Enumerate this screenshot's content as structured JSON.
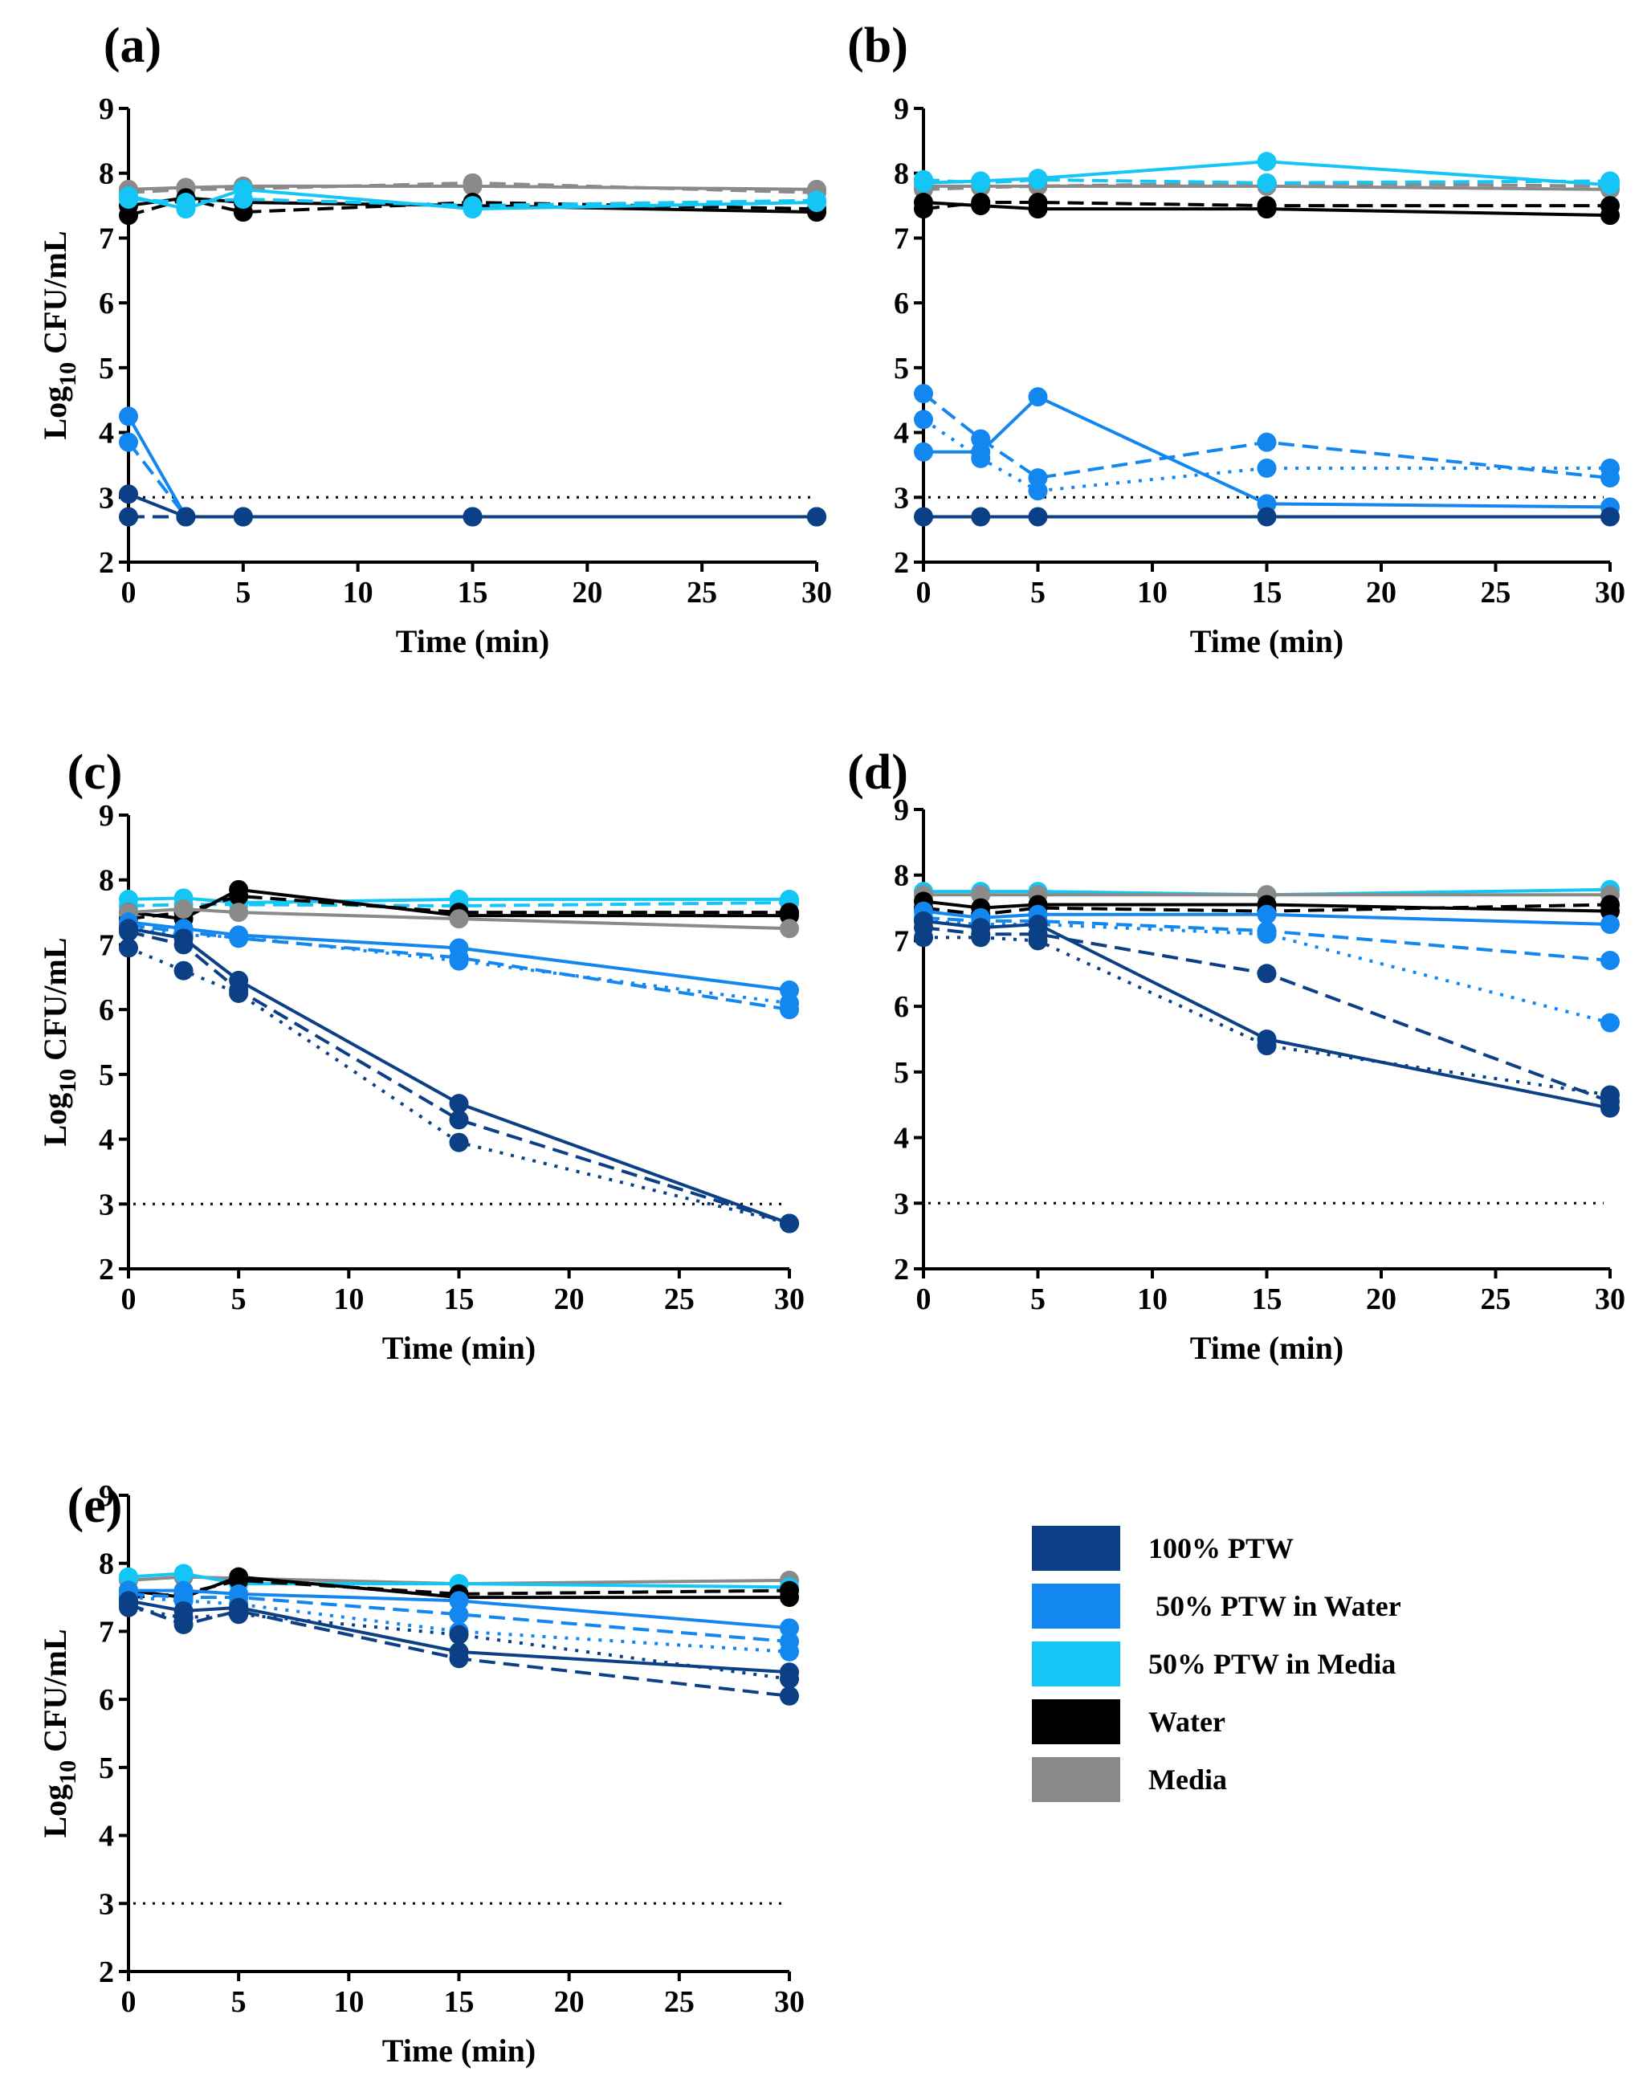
{
  "legend": [
    {
      "label": "100% PTW",
      "color": "#0b3f86"
    },
    {
      "label": " 50% PTW in Water",
      "color": "#1287f0"
    },
    {
      "label": "50% PTW in Media",
      "color": "#14c6f5"
    },
    {
      "label": "Water",
      "color": "#000000"
    },
    {
      "label": "Media",
      "color": "#8a8a8a"
    }
  ],
  "detection_limit": 3,
  "chart_data": [
    {
      "type": "line",
      "panel": "(a)",
      "xlabel": "Time (min)",
      "ylabel": "Log10 CFU/mL",
      "xlim": [
        0,
        30
      ],
      "ylim": [
        2,
        9
      ],
      "xticks": [
        0,
        5,
        10,
        15,
        20,
        25,
        30
      ],
      "yticks": [
        2,
        3,
        4,
        5,
        6,
        7,
        8,
        9
      ],
      "x": [
        0,
        2.5,
        5,
        15,
        30
      ],
      "series": [
        {
          "group": "Media",
          "values": [
            7.75,
            7.78,
            7.8,
            7.8,
            7.75
          ]
        },
        {
          "group": "Media",
          "values": [
            7.7,
            7.75,
            7.76,
            7.85,
            7.7
          ]
        },
        {
          "group": "Water",
          "values": [
            7.5,
            7.62,
            7.55,
            7.5,
            7.4
          ]
        },
        {
          "group": "Water",
          "values": [
            7.35,
            7.6,
            7.4,
            7.55,
            7.45
          ]
        },
        {
          "group": "50% PTW in Media",
          "values": [
            7.65,
            7.45,
            7.75,
            7.45,
            7.55
          ]
        },
        {
          "group": "50% PTW in Media",
          "values": [
            7.6,
            7.55,
            7.6,
            7.5,
            7.58
          ]
        },
        {
          "group": "50% PTW in Water",
          "values": [
            4.25,
            2.7,
            2.7,
            2.7,
            2.7
          ]
        },
        {
          "group": "50% PTW in Water",
          "values": [
            3.85,
            2.7,
            2.7,
            2.7,
            2.7
          ]
        },
        {
          "group": "100% PTW",
          "values": [
            3.05,
            2.7,
            2.7,
            2.7,
            2.7
          ]
        },
        {
          "group": "100% PTW",
          "values": [
            2.7,
            2.7,
            2.7,
            2.7,
            2.7
          ]
        }
      ]
    },
    {
      "type": "line",
      "panel": "(b)",
      "xlabel": "Time (min)",
      "ylabel": "",
      "xlim": [
        0,
        30
      ],
      "ylim": [
        2,
        9
      ],
      "xticks": [
        0,
        5,
        10,
        15,
        20,
        25,
        30
      ],
      "yticks": [
        2,
        3,
        4,
        5,
        6,
        7,
        8,
        9
      ],
      "x": [
        0,
        2.5,
        5,
        15,
        30
      ],
      "series": [
        {
          "group": "Media",
          "values": [
            7.8,
            7.8,
            7.8,
            7.8,
            7.75
          ]
        },
        {
          "group": "Media",
          "values": [
            7.75,
            7.78,
            7.8,
            7.85,
            7.8
          ]
        },
        {
          "group": "50% PTW in Media",
          "values": [
            7.85,
            7.88,
            7.92,
            8.18,
            7.82
          ]
        },
        {
          "group": "50% PTW in Media",
          "values": [
            7.9,
            7.85,
            7.9,
            7.85,
            7.88
          ]
        },
        {
          "group": "Water",
          "values": [
            7.55,
            7.5,
            7.45,
            7.45,
            7.35
          ]
        },
        {
          "group": "Water",
          "values": [
            7.45,
            7.55,
            7.55,
            7.5,
            7.5
          ]
        },
        {
          "group": "50% PTW in Water",
          "values": [
            3.7,
            3.7,
            4.55,
            2.9,
            2.85
          ]
        },
        {
          "group": "50% PTW in Water",
          "values": [
            4.6,
            3.9,
            3.3,
            3.85,
            3.3
          ]
        },
        {
          "group": "50% PTW in Water",
          "values": [
            4.2,
            3.6,
            3.1,
            3.45,
            3.45
          ]
        },
        {
          "group": "100% PTW",
          "values": [
            2.7,
            2.7,
            2.7,
            2.7,
            2.7
          ]
        }
      ]
    },
    {
      "type": "line",
      "panel": "(c)",
      "xlabel": "Time (min)",
      "ylabel": "Log10 CFU/mL",
      "xlim": [
        0,
        30
      ],
      "ylim": [
        2,
        9
      ],
      "xticks": [
        0,
        5,
        10,
        15,
        20,
        25,
        30
      ],
      "yticks": [
        2,
        3,
        4,
        5,
        6,
        7,
        8,
        9
      ],
      "x": [
        0,
        2.5,
        5,
        15,
        30
      ],
      "series": [
        {
          "group": "50% PTW in Media",
          "values": [
            7.7,
            7.72,
            7.65,
            7.7,
            7.7
          ]
        },
        {
          "group": "50% PTW in Media",
          "values": [
            7.6,
            7.62,
            7.62,
            7.6,
            7.65
          ]
        },
        {
          "group": "Water",
          "values": [
            7.5,
            7.4,
            7.85,
            7.45,
            7.45
          ]
        },
        {
          "group": "Water",
          "values": [
            7.4,
            7.5,
            7.75,
            7.5,
            7.5
          ]
        },
        {
          "group": "Media",
          "values": [
            7.5,
            7.55,
            7.5,
            7.4,
            7.25
          ]
        },
        {
          "group": "50% PTW in Water",
          "values": [
            7.35,
            7.25,
            7.15,
            6.95,
            6.3
          ]
        },
        {
          "group": "50% PTW in Water",
          "values": [
            7.3,
            7.2,
            7.1,
            6.8,
            6.0
          ]
        },
        {
          "group": "50% PTW in Water",
          "values": [
            7.25,
            7.15,
            7.12,
            6.75,
            6.1
          ]
        },
        {
          "group": "100% PTW",
          "values": [
            7.25,
            7.1,
            6.45,
            4.55,
            2.7
          ]
        },
        {
          "group": "100% PTW",
          "values": [
            7.2,
            7.0,
            6.3,
            4.3,
            2.7
          ]
        },
        {
          "group": "100% PTW",
          "values": [
            6.95,
            6.6,
            6.25,
            3.95,
            2.7
          ]
        }
      ]
    },
    {
      "type": "line",
      "panel": "(d)",
      "xlabel": "Time (min)",
      "ylabel": "",
      "xlim": [
        0,
        30
      ],
      "ylim": [
        2,
        9
      ],
      "xticks": [
        0,
        5,
        10,
        15,
        20,
        25,
        30
      ],
      "yticks": [
        2,
        3,
        4,
        5,
        6,
        7,
        8,
        9
      ],
      "x": [
        0,
        2.5,
        5,
        15,
        30
      ],
      "series": [
        {
          "group": "50% PTW in Media",
          "values": [
            7.75,
            7.75,
            7.75,
            7.7,
            7.78
          ]
        },
        {
          "group": "Media",
          "values": [
            7.7,
            7.7,
            7.7,
            7.7,
            7.7
          ]
        },
        {
          "group": "Water",
          "values": [
            7.6,
            7.5,
            7.55,
            7.55,
            7.45
          ]
        },
        {
          "group": "Water",
          "values": [
            7.5,
            7.4,
            7.5,
            7.45,
            7.55
          ]
        },
        {
          "group": "50% PTW in Water",
          "values": [
            7.45,
            7.35,
            7.4,
            7.4,
            7.25
          ]
        },
        {
          "group": "50% PTW in Water",
          "values": [
            7.35,
            7.3,
            7.3,
            7.15,
            6.7
          ]
        },
        {
          "group": "50% PTW in Water",
          "values": [
            7.3,
            7.25,
            7.25,
            7.1,
            5.75
          ]
        },
        {
          "group": "100% PTW",
          "values": [
            7.3,
            7.2,
            7.25,
            5.5,
            4.45
          ]
        },
        {
          "group": "100% PTW",
          "values": [
            7.2,
            7.1,
            7.1,
            6.5,
            4.55
          ]
        },
        {
          "group": "100% PTW",
          "values": [
            7.05,
            7.05,
            7.0,
            5.4,
            4.65
          ]
        }
      ]
    },
    {
      "type": "line",
      "panel": "(e)",
      "xlabel": "Time (min)",
      "ylabel": "Log10 CFU/mL",
      "xlim": [
        0,
        30
      ],
      "ylim": [
        2,
        9
      ],
      "xticks": [
        0,
        5,
        10,
        15,
        20,
        25,
        30
      ],
      "yticks": [
        2,
        3,
        4,
        5,
        6,
        7,
        8,
        9
      ],
      "x": [
        0,
        2.5,
        5,
        15,
        30
      ],
      "series": [
        {
          "group": "Media",
          "values": [
            7.75,
            7.8,
            7.78,
            7.7,
            7.75
          ]
        },
        {
          "group": "50% PTW in Media",
          "values": [
            7.8,
            7.85,
            7.7,
            7.7,
            7.65
          ]
        },
        {
          "group": "Water",
          "values": [
            7.6,
            7.5,
            7.8,
            7.5,
            7.5
          ]
        },
        {
          "group": "Water",
          "values": [
            7.5,
            7.55,
            7.75,
            7.55,
            7.6
          ]
        },
        {
          "group": "50% PTW in Water",
          "values": [
            7.6,
            7.6,
            7.55,
            7.45,
            7.05
          ]
        },
        {
          "group": "50% PTW in Water",
          "values": [
            7.55,
            7.5,
            7.5,
            7.25,
            6.85
          ]
        },
        {
          "group": "50% PTW in Water",
          "values": [
            7.5,
            7.45,
            7.4,
            7.0,
            6.7
          ]
        },
        {
          "group": "100% PTW",
          "values": [
            7.45,
            7.3,
            7.35,
            6.7,
            6.4
          ]
        },
        {
          "group": "100% PTW",
          "values": [
            7.4,
            7.1,
            7.3,
            6.6,
            6.05
          ]
        },
        {
          "group": "100% PTW",
          "values": [
            7.35,
            7.2,
            7.25,
            6.95,
            6.3
          ]
        }
      ]
    }
  ]
}
